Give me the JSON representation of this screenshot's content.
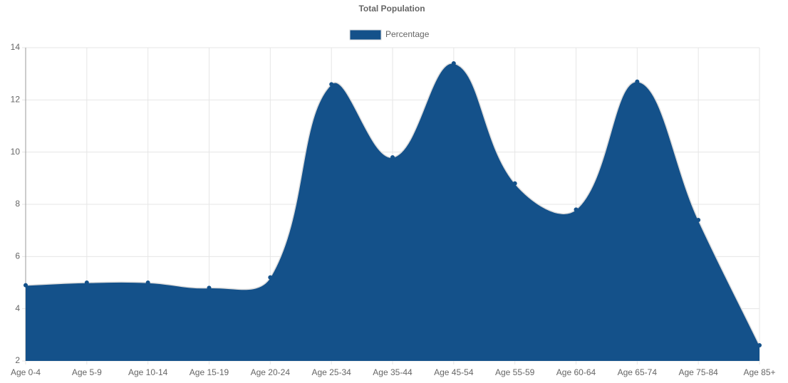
{
  "chart_data": {
    "type": "area",
    "title": "Total Population",
    "categories": [
      "Age 0-4",
      "Age 5-9",
      "Age 10-14",
      "Age 15-19",
      "Age 20-24",
      "Age 25-34",
      "Age 35-44",
      "Age 45-54",
      "Age 55-59",
      "Age 60-64",
      "Age 65-74",
      "Age 75-84",
      "Age 85+"
    ],
    "series": [
      {
        "name": "Percentage",
        "color": "#14518a",
        "values": [
          4.9,
          5.0,
          5.0,
          4.8,
          5.2,
          12.6,
          9.8,
          13.4,
          8.8,
          7.8,
          12.7,
          7.4,
          2.6
        ]
      }
    ],
    "ylim": [
      2,
      14
    ],
    "yticks": [
      2,
      4,
      6,
      8,
      10,
      12,
      14
    ],
    "grid": true,
    "legend": "top"
  }
}
